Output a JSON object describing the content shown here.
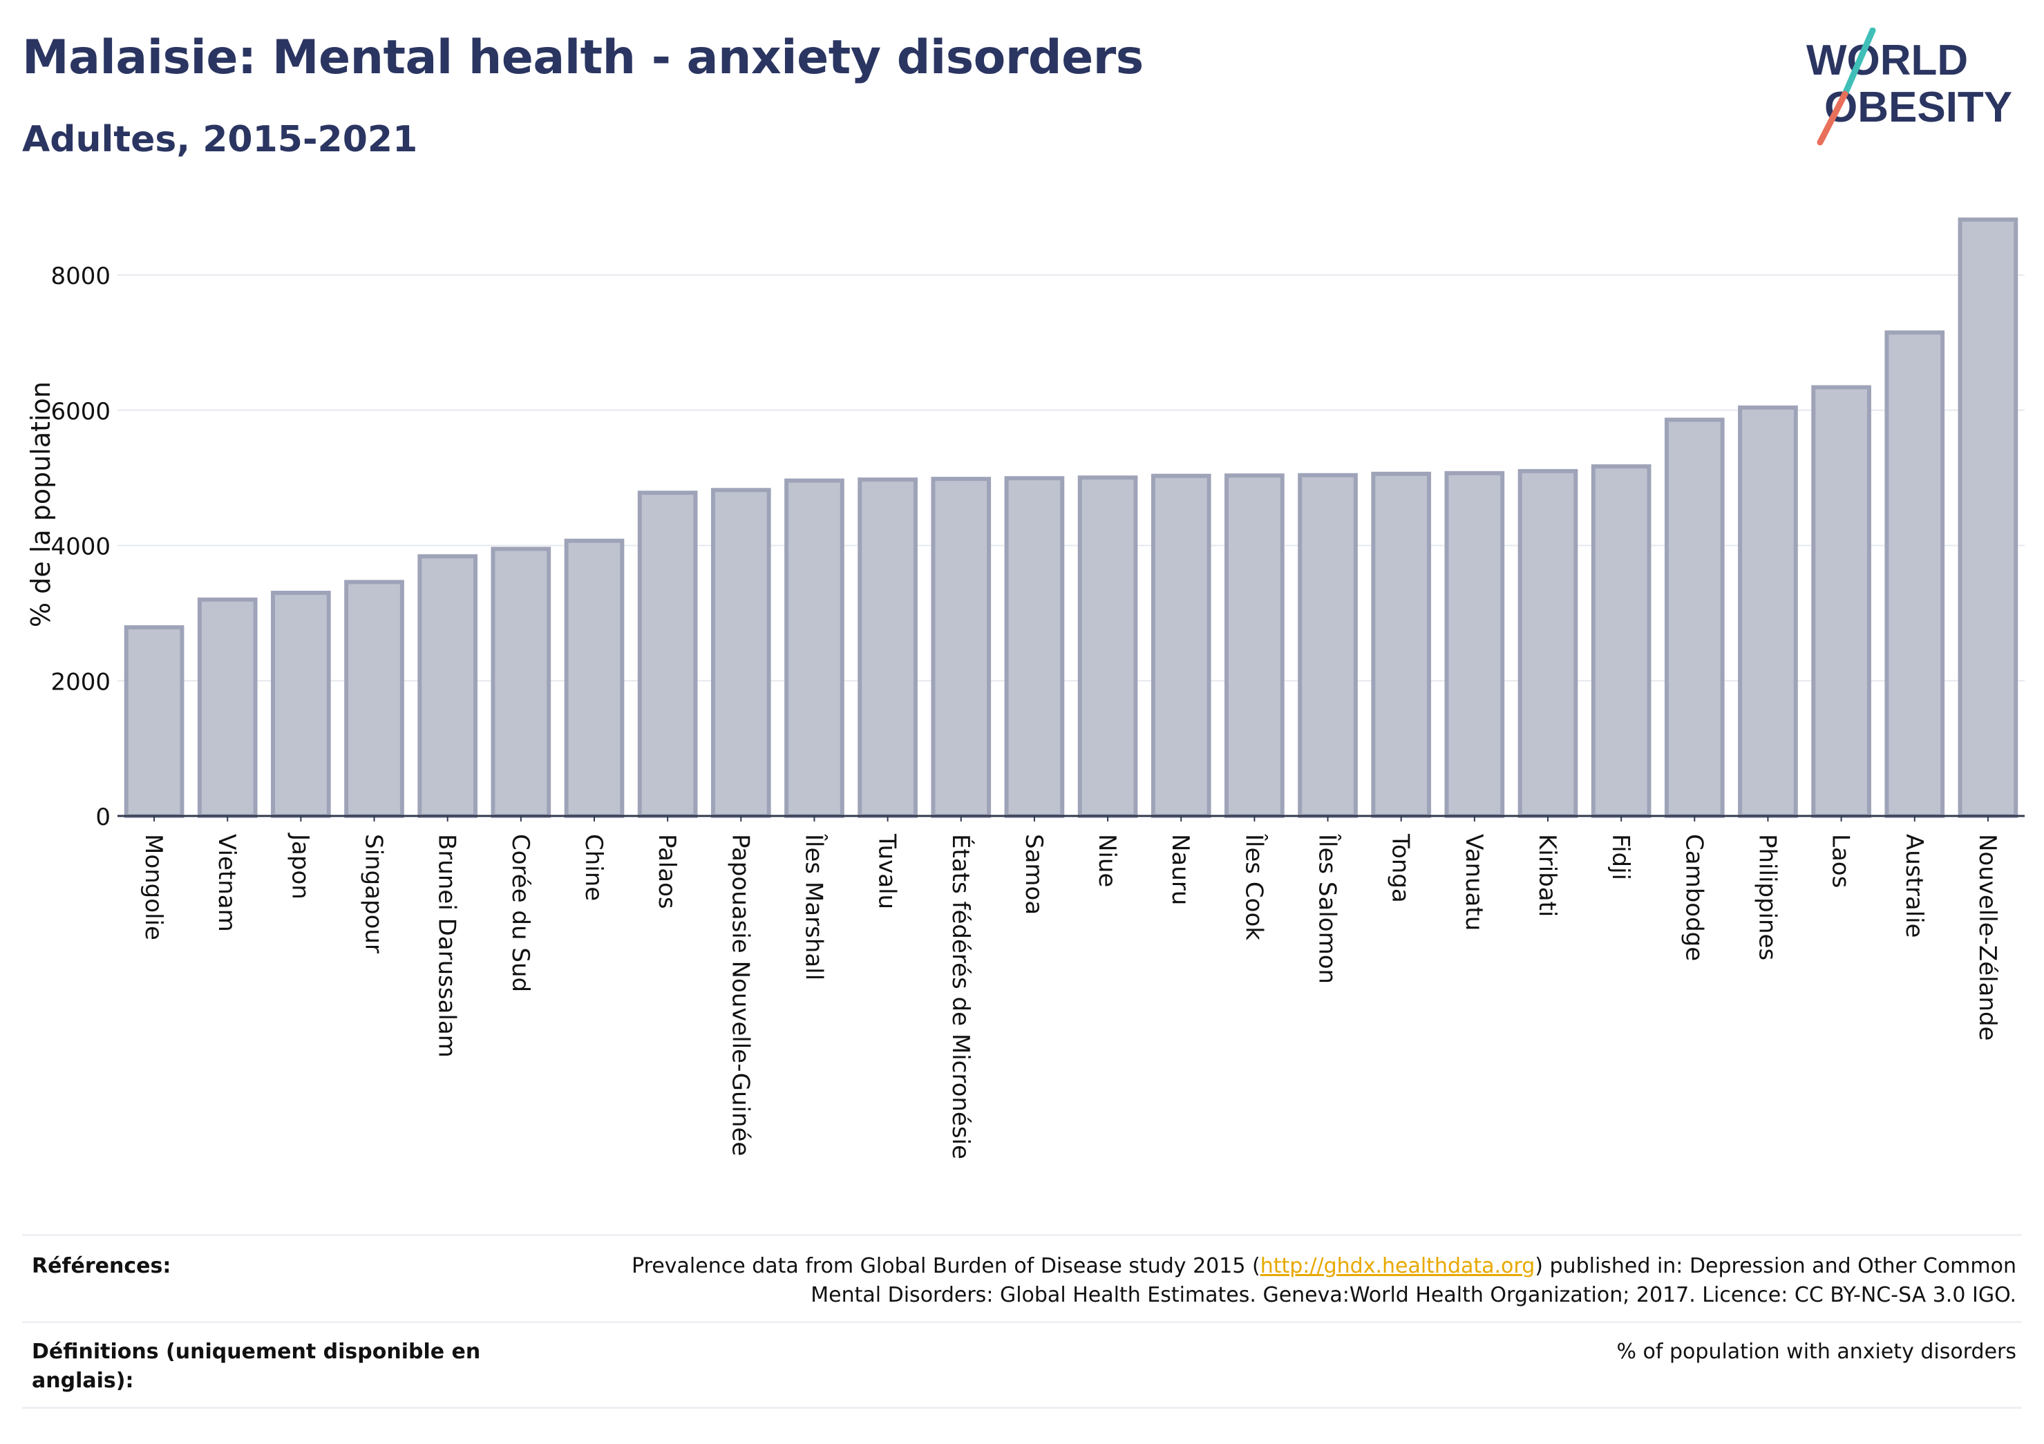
{
  "header": {
    "title": "Malaisie: Mental health - anxiety disorders",
    "subtitle": "Adultes, 2015-2021"
  },
  "logo": {
    "line1": "WORLD",
    "line2": "OBESITY",
    "accent_colors": [
      "#3fbfb8",
      "#e8705a"
    ]
  },
  "chart_data": {
    "type": "bar",
    "title": "Malaisie: Mental health - anxiety disorders",
    "subtitle": "Adultes, 2015-2021",
    "xlabel": "",
    "ylabel": "% de la population",
    "ylim": [
      0,
      8900
    ],
    "yticks": [
      0,
      2000,
      4000,
      6000,
      8000
    ],
    "grid": true,
    "bar_color": "#bfc3d0",
    "bar_edge_color": "#9ea3b8",
    "categories": [
      "Mongolie",
      "Vietnam",
      "Japon",
      "Singapour",
      "Brunei Darussalam",
      "Corée du Sud",
      "Chine",
      "Palaos",
      "Papouasie Nouvelle-Guinée",
      "Îles Marshall",
      "Tuvalu",
      "États fédérés de Micronésie",
      "Samoa",
      "Niue",
      "Nauru",
      "Îles Cook",
      "Îles Salomon",
      "Tonga",
      "Vanuatu",
      "Kiribati",
      "Fidji",
      "Cambodge",
      "Philippines",
      "Laos",
      "Australie",
      "Nouvelle-Zélande"
    ],
    "values": [
      2790,
      3200,
      3300,
      3460,
      3840,
      3950,
      4070,
      4780,
      4820,
      4960,
      4975,
      4985,
      4995,
      5005,
      5030,
      5035,
      5040,
      5060,
      5070,
      5100,
      5170,
      5860,
      6040,
      6340,
      7150,
      8820
    ]
  },
  "references": {
    "label": "Références:",
    "text_before": "Prevalence data from Global Burden of Disease study 2015 (",
    "link": "http://ghdx.healthdata.org",
    "text_after": ") published in: Depression and Other Common Mental Disorders: Global Health Estimates. Geneva:World Health Organization; 2017. Licence: CC BY-NC-SA 3.0 IGO."
  },
  "definitions": {
    "label": "Définitions (uniquement disponible en anglais):",
    "text": "% of population with anxiety disorders"
  }
}
